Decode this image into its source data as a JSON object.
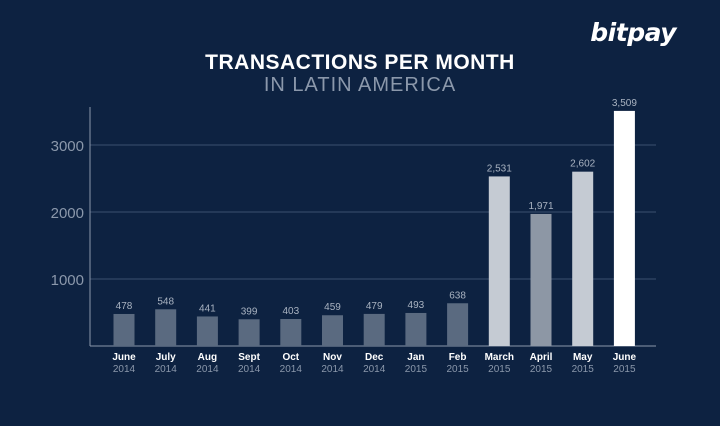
{
  "brand": {
    "logo_text": "bitpay"
  },
  "chart_data": {
    "type": "bar",
    "title": "TRANSACTIONS PER MONTH",
    "subtitle": "IN LATIN AMERICA",
    "categories": [
      {
        "month": "June",
        "year": "2014"
      },
      {
        "month": "July",
        "year": "2014"
      },
      {
        "month": "Aug",
        "year": "2014"
      },
      {
        "month": "Sept",
        "year": "2014"
      },
      {
        "month": "Oct",
        "year": "2014"
      },
      {
        "month": "Nov",
        "year": "2014"
      },
      {
        "month": "Dec",
        "year": "2014"
      },
      {
        "month": "Jan",
        "year": "2015"
      },
      {
        "month": "Feb",
        "year": "2015"
      },
      {
        "month": "March",
        "year": "2015"
      },
      {
        "month": "April",
        "year": "2015"
      },
      {
        "month": "May",
        "year": "2015"
      },
      {
        "month": "June",
        "year": "2015"
      }
    ],
    "values": [
      478,
      548,
      441,
      399,
      403,
      459,
      479,
      493,
      638,
      2531,
      1971,
      2602,
      3509
    ],
    "data_labels": [
      "478",
      "548",
      "441",
      "399",
      "403",
      "459",
      "479",
      "493",
      "638",
      "2,531",
      "1,971",
      "2,602",
      "3,509"
    ],
    "bar_colors": [
      "#5a6a80",
      "#5a6a80",
      "#5a6a80",
      "#5a6a80",
      "#5a6a80",
      "#5a6a80",
      "#5a6a80",
      "#5a6a80",
      "#5a6a80",
      "#c5cbd3",
      "#8d97a5",
      "#c5cbd3",
      "#ffffff"
    ],
    "yticks": [
      1000,
      2000,
      3000
    ],
    "ylim": [
      0,
      3509
    ],
    "grid": true,
    "legend": "none"
  }
}
